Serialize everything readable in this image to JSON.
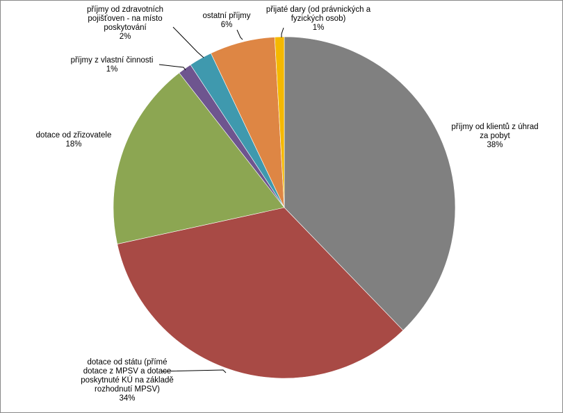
{
  "chart_data": {
    "type": "pie",
    "title": "",
    "legend": "none",
    "start_angle_deg": 0,
    "direction": "clockwise",
    "slices": [
      {
        "label": "příjmy od klientů z úhrad za pobyt",
        "value": 38,
        "percent_label": "38%",
        "color": "#808080"
      },
      {
        "label": "dotace od státu (přímé dotace z MPSV a dotace poskytnuté KÚ na základě rozhodnutí MPSV)",
        "value": 34,
        "percent_label": "34%",
        "color": "#A84A45"
      },
      {
        "label": "dotace od zřizovatele",
        "value": 18,
        "percent_label": "18%",
        "color": "#8CA652"
      },
      {
        "label": "příjmy z vlastní činnosti",
        "value": 1.3,
        "percent_label": "1%",
        "color": "#6E558F"
      },
      {
        "label": "příjmy od zdravotních pojišťoven - na místo poskytování",
        "value": 2.2,
        "percent_label": "2%",
        "color": "#3F99AE"
      },
      {
        "label": "ostatní příjmy",
        "value": 6.2,
        "percent_label": "6%",
        "color": "#DE8644"
      },
      {
        "label": "přijaté dary (od právnických a fyzických osob)",
        "value": 0.9,
        "percent_label": "1%",
        "color": "#F5B800"
      }
    ]
  }
}
